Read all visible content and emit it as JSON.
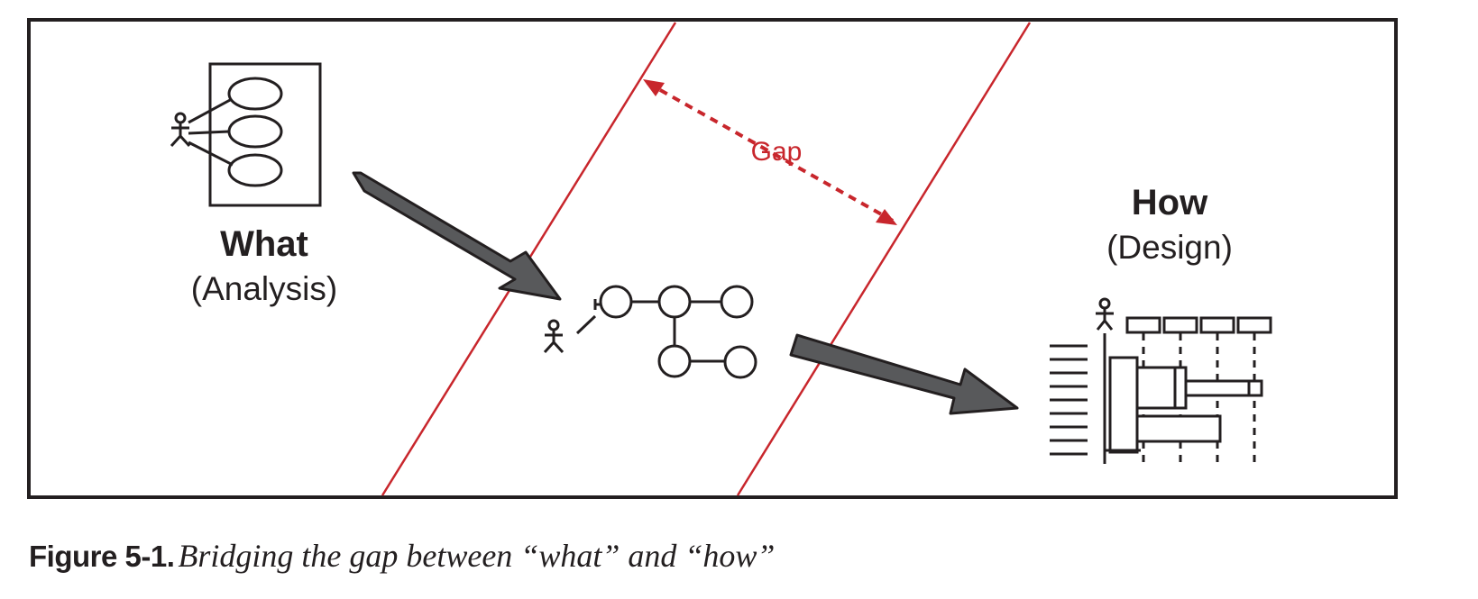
{
  "figure": {
    "what_label": "What",
    "what_sublabel": "(Analysis)",
    "how_label": "How",
    "how_sublabel": "(Design)",
    "gap_label": "Gap"
  },
  "caption": {
    "number": "Figure 5-1.",
    "text": "Bridging the gap between “what” and “how”"
  },
  "colors": {
    "gap_red": "#c8262c",
    "arrow_fill": "#58595b",
    "ink": "#231f20"
  }
}
